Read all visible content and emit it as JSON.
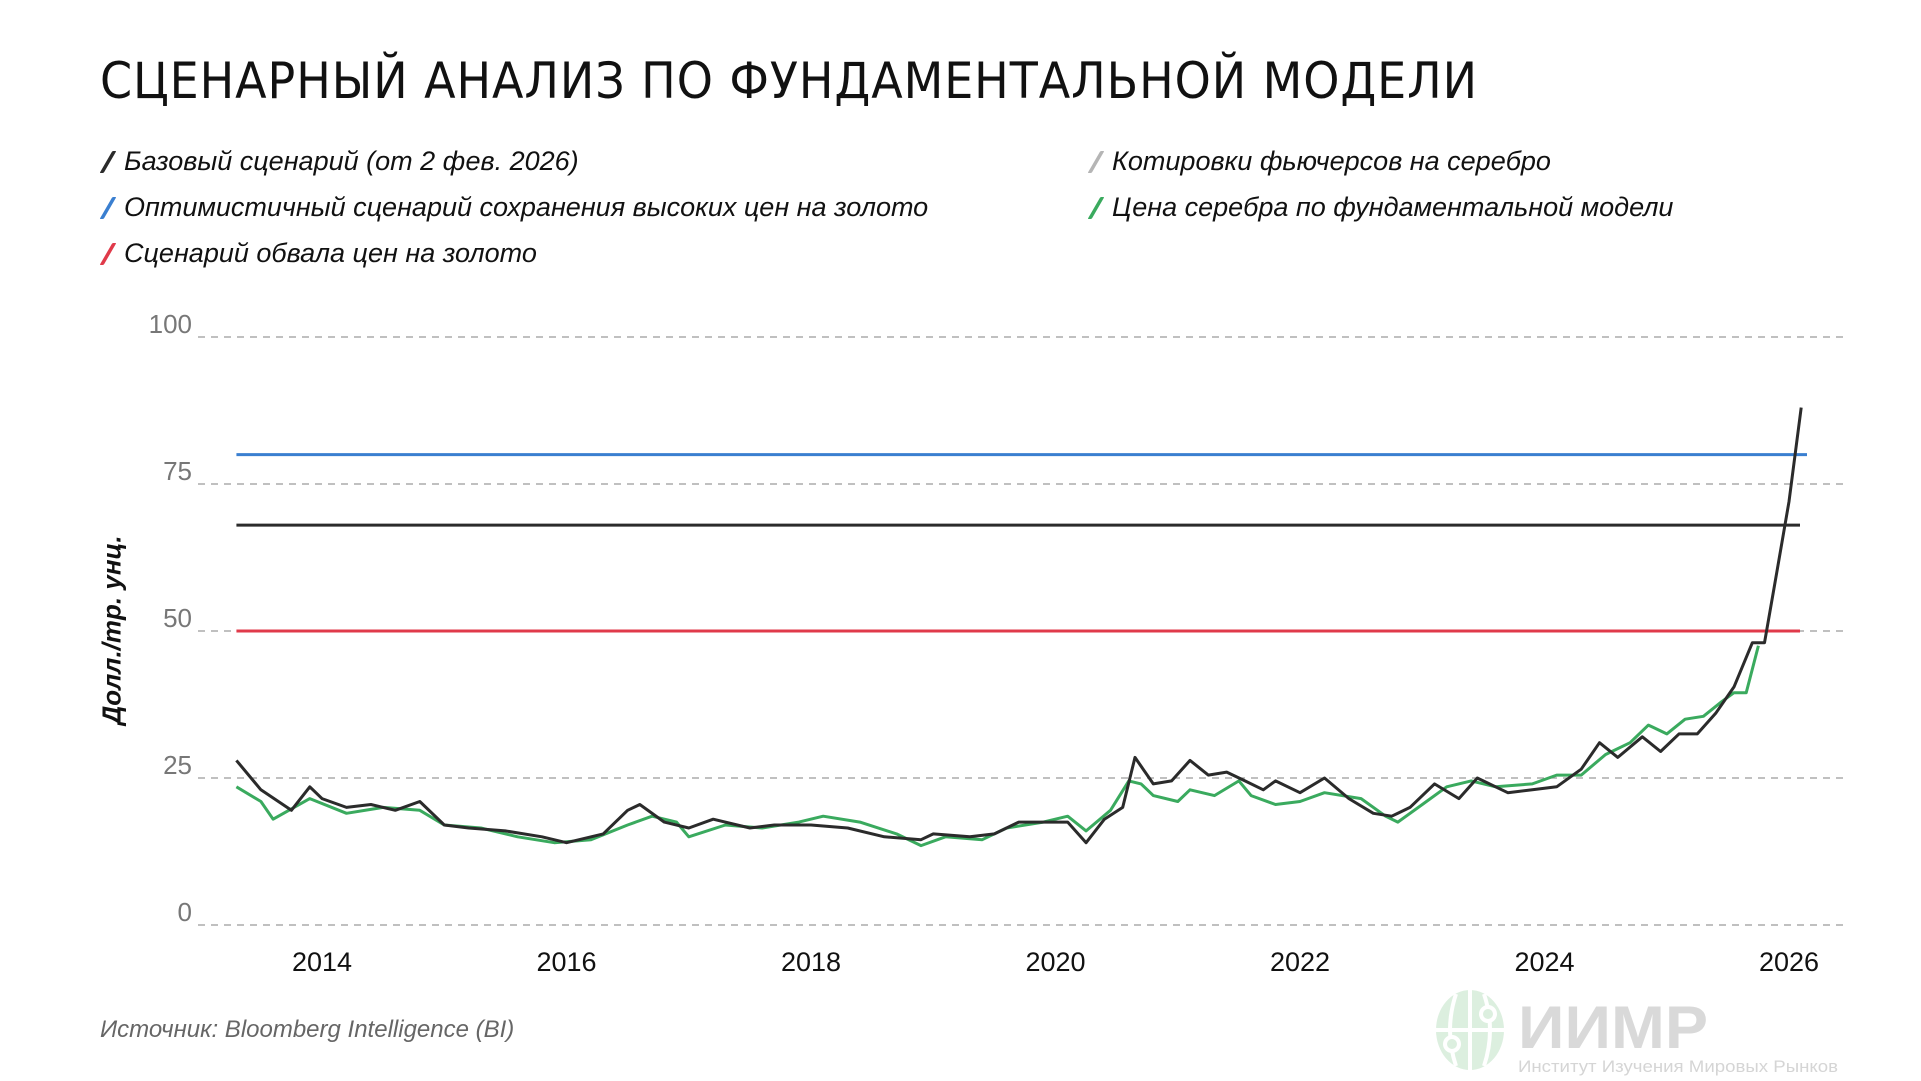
{
  "title": "Сценарный анализ по фундаментальной модели",
  "legend": [
    {
      "label": "Базовый сценарий (от 2 фев. 2026)",
      "color": "#2b2b2b"
    },
    {
      "label": "Оптимистичный сценарий сохранения высоких цен на золото",
      "color": "#3a7fd0"
    },
    {
      "label": "Сценарий обвала цен на золото",
      "color": "#e03a4a"
    },
    {
      "label": "Котировки фьючерсов на серебро",
      "color": "#b5b5b5"
    },
    {
      "label": "Цена серебра по фундаментальной модели",
      "color": "#3aaa5e"
    }
  ],
  "source": "Источник: Bloomberg Intelligence (BI)",
  "watermark": {
    "logo": "ИИМР",
    "subtitle": "Институт Изучения Мировых Рынков"
  },
  "chart_data": {
    "type": "line",
    "title": "Сценарный анализ по фундаментальной модели",
    "xlabel": "",
    "ylabel": "Долл./тр. унц.",
    "ylim": [
      0,
      100
    ],
    "xlim": [
      2013.3,
      2026.1
    ],
    "yticks": [
      "0",
      "25",
      "50",
      "75",
      "100"
    ],
    "xticks": [
      "2014",
      "2016",
      "2018",
      "2020",
      "2022",
      "2024",
      "2026"
    ],
    "grid": "horizontal dashed",
    "legend_position": "top",
    "hlines": [
      {
        "name": "Оптимистичный сценарий сохранения высоких цен на золото",
        "value": 80,
        "color": "#3a7fd0"
      },
      {
        "name": "Базовый сценарий (от 2 фев. 2026)",
        "value": 68,
        "color": "#2b2b2b"
      },
      {
        "name": "Сценарий обвала цен на золото",
        "value": 50,
        "color": "#e03a4a"
      }
    ],
    "series": [
      {
        "name": "Котировки фьючерсов на серебро",
        "color": "#2b2b2b",
        "x": [
          2013.3,
          2013.5,
          2013.75,
          2013.9,
          2014.0,
          2014.2,
          2014.4,
          2014.6,
          2014.8,
          2015.0,
          2015.2,
          2015.5,
          2015.8,
          2016.0,
          2016.3,
          2016.5,
          2016.6,
          2016.8,
          2017.0,
          2017.2,
          2017.5,
          2017.7,
          2018.0,
          2018.3,
          2018.6,
          2018.9,
          2019.0,
          2019.3,
          2019.5,
          2019.7,
          2019.9,
          2020.1,
          2020.25,
          2020.4,
          2020.55,
          2020.65,
          2020.8,
          2020.95,
          2021.1,
          2021.25,
          2021.4,
          2021.55,
          2021.7,
          2021.8,
          2022.0,
          2022.2,
          2022.4,
          2022.6,
          2022.75,
          2022.9,
          2023.1,
          2023.3,
          2023.45,
          2023.7,
          2023.9,
          2024.1,
          2024.3,
          2024.45,
          2024.6,
          2024.8,
          2024.95,
          2025.1,
          2025.25,
          2025.4,
          2025.55,
          2025.7,
          2025.8,
          2025.9,
          2026.0,
          2026.1
        ],
        "y": [
          28,
          23,
          19.5,
          23.5,
          21.5,
          20,
          20.5,
          19.5,
          21,
          17,
          16.5,
          16,
          15,
          14,
          15.5,
          19.5,
          20.5,
          17.5,
          16.5,
          18,
          16.5,
          17,
          17,
          16.5,
          15,
          14.5,
          15.5,
          15,
          15.5,
          17.5,
          17.5,
          17.5,
          14,
          18,
          20,
          28.5,
          24,
          24.5,
          28,
          25.5,
          26,
          24.5,
          23,
          24.5,
          22.5,
          25,
          21.5,
          19,
          18.5,
          20,
          24,
          21.5,
          25,
          22.5,
          23,
          23.5,
          26.5,
          31,
          28.5,
          32,
          29.5,
          32.5,
          32.5,
          36,
          40.5,
          48,
          48,
          60,
          72,
          88
        ]
      },
      {
        "name": "Цена серебра по фундаментальной модели",
        "color": "#3aaa5e",
        "x": [
          2013.3,
          2013.5,
          2013.6,
          2013.9,
          2014.2,
          2014.5,
          2014.8,
          2015.0,
          2015.3,
          2015.6,
          2015.9,
          2016.2,
          2016.5,
          2016.7,
          2016.9,
          2017.0,
          2017.3,
          2017.6,
          2017.9,
          2018.1,
          2018.4,
          2018.7,
          2018.9,
          2019.1,
          2019.4,
          2019.6,
          2019.9,
          2020.1,
          2020.25,
          2020.45,
          2020.6,
          2020.7,
          2020.8,
          2021.0,
          2021.1,
          2021.3,
          2021.5,
          2021.6,
          2021.8,
          2022.0,
          2022.2,
          2022.5,
          2022.7,
          2022.8,
          2023.0,
          2023.2,
          2023.4,
          2023.6,
          2023.9,
          2024.1,
          2024.3,
          2024.5,
          2024.7,
          2024.85,
          2025.0,
          2025.15,
          2025.3,
          2025.45,
          2025.55,
          2025.65,
          2025.75
        ],
        "y": [
          23.5,
          21,
          18,
          21.5,
          19,
          20,
          19.5,
          17,
          16.5,
          15,
          14,
          14.5,
          17,
          18.5,
          17.5,
          15,
          17,
          16.5,
          17.5,
          18.5,
          17.5,
          15.5,
          13.5,
          15,
          14.5,
          16.5,
          17.5,
          18.5,
          16,
          19.5,
          24.5,
          24,
          22,
          21,
          23,
          22,
          24.5,
          22,
          20.5,
          21,
          22.5,
          21.5,
          18.5,
          17.5,
          20.5,
          23.5,
          24.5,
          23.5,
          24,
          25.5,
          25.5,
          29,
          31,
          34,
          32.5,
          35,
          35.5,
          38,
          39.5,
          39.5,
          47.5
        ]
      }
    ]
  }
}
